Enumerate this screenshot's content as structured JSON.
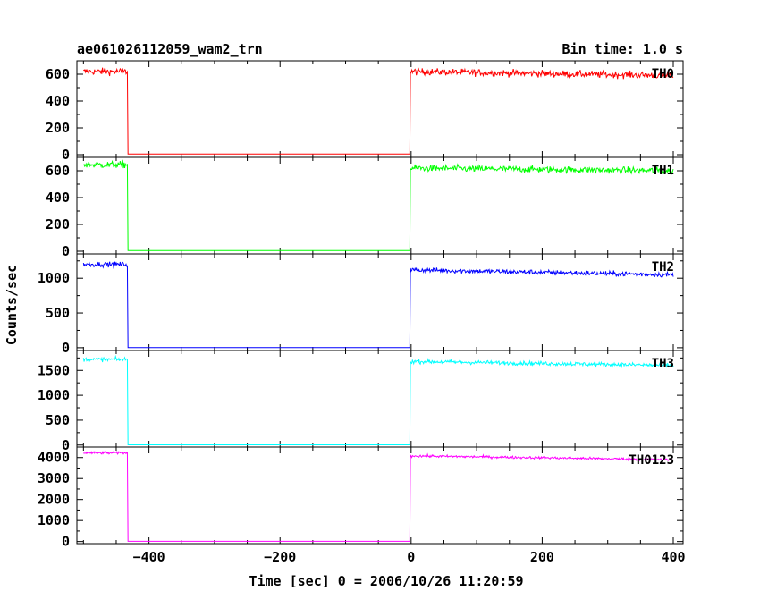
{
  "header": {
    "title": "ae061026112059_wam2_trn",
    "bin_time": "Bin time: 1.0 s"
  },
  "chart_data": {
    "type": "line",
    "xlabel": "Time [sec] 0 = 2006/10/26 11:20:59",
    "ylabel": "Counts/sec",
    "xlim": [
      -510,
      415
    ],
    "x_ticks": [
      -400,
      -200,
      0,
      200,
      400
    ],
    "x_tick_labels": [
      "−400",
      "−200",
      "0",
      "200",
      "400"
    ],
    "gap": [
      -432,
      -2
    ],
    "x_data_start": -500,
    "x_data_end": 400,
    "panels": [
      {
        "name": "TH0",
        "color": "#ff0000",
        "ylim": [
          -20,
          700
        ],
        "yticks": [
          0,
          200,
          400,
          600
        ],
        "level_before": 620,
        "level_after_start": 620,
        "level_after_end": 590,
        "noise": 25,
        "gap_level": 5
      },
      {
        "name": "TH1",
        "color": "#00ff00",
        "ylim": [
          -20,
          700
        ],
        "yticks": [
          0,
          200,
          400,
          600
        ],
        "level_before": 645,
        "level_after_start": 620,
        "level_after_end": 600,
        "noise": 25,
        "gap_level": 5
      },
      {
        "name": "TH2",
        "color": "#0000ff",
        "ylim": [
          -40,
          1350
        ],
        "yticks": [
          0,
          500,
          1000
        ],
        "level_before": 1200,
        "level_after_start": 1120,
        "level_after_end": 1050,
        "noise": 35,
        "gap_level": 2
      },
      {
        "name": "TH3",
        "color": "#00ffff",
        "ylim": [
          -40,
          1900
        ],
        "yticks": [
          0,
          500,
          1000,
          1500
        ],
        "level_before": 1720,
        "level_after_start": 1680,
        "level_after_end": 1600,
        "noise": 40,
        "gap_level": 5
      },
      {
        "name": "TH0123",
        "color": "#ff00ff",
        "ylim": [
          -100,
          4500
        ],
        "yticks": [
          0,
          1000,
          2000,
          3000,
          4000
        ],
        "level_before": 4220,
        "level_after_start": 4080,
        "level_after_end": 3900,
        "noise": 60,
        "gap_level": 10
      }
    ]
  }
}
